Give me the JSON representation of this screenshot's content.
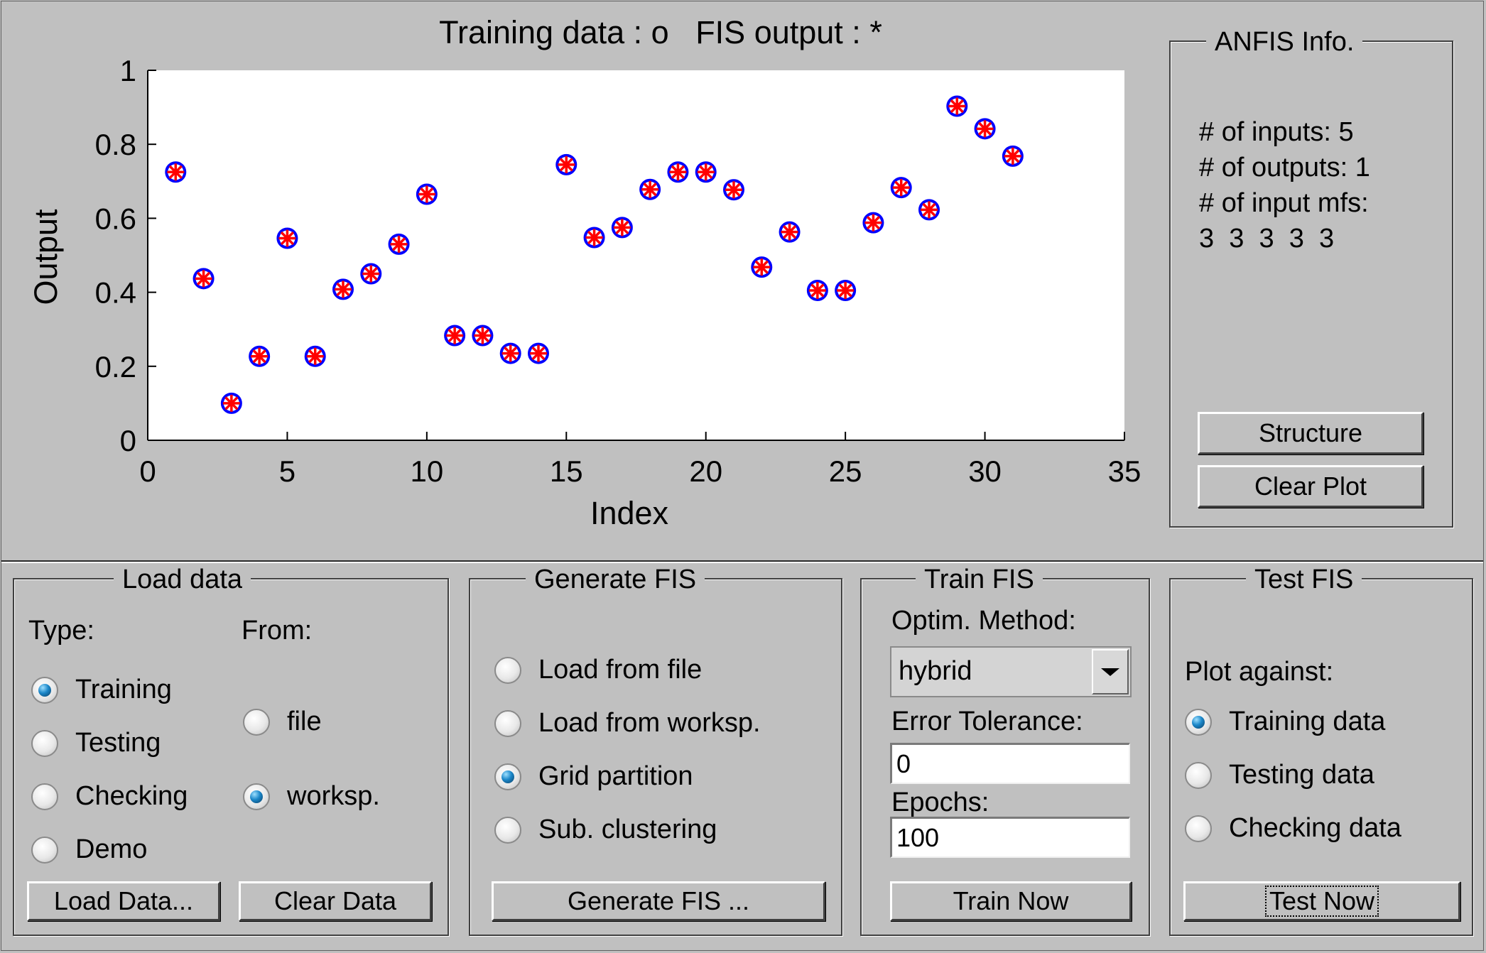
{
  "plot": {
    "title": "Training data : o   FIS output : *"
  },
  "chart_data": {
    "type": "scatter",
    "title": "Training data : o   FIS output : *",
    "xlabel": "Index",
    "ylabel": "Output",
    "xlim": [
      0,
      35
    ],
    "ylim": [
      0,
      1
    ],
    "x_ticks": [
      "0",
      "5",
      "10",
      "15",
      "20",
      "25",
      "30",
      "35"
    ],
    "y_ticks": [
      "0",
      "0.2",
      "0.4",
      "0.6",
      "0.8",
      "1"
    ],
    "grid": false,
    "series": [
      {
        "name": "Training data",
        "marker": "o",
        "color": "#0000ff",
        "x": [
          1,
          2,
          3,
          4,
          5,
          6,
          7,
          8,
          9,
          10,
          11,
          12,
          13,
          14,
          15,
          16,
          17,
          18,
          19,
          20,
          21,
          22,
          23,
          24,
          25,
          26,
          27,
          28,
          29,
          30,
          31
        ],
        "y": [
          0.725,
          0.437,
          0.1,
          0.227,
          0.546,
          0.227,
          0.408,
          0.45,
          0.53,
          0.665,
          0.283,
          0.283,
          0.235,
          0.235,
          0.745,
          0.548,
          0.575,
          0.678,
          0.725,
          0.725,
          0.677,
          0.468,
          0.563,
          0.405,
          0.405,
          0.588,
          0.683,
          0.623,
          0.903,
          0.842,
          0.768
        ]
      },
      {
        "name": "FIS output",
        "marker": "*",
        "color": "#ff0000",
        "x": [
          1,
          2,
          3,
          4,
          5,
          6,
          7,
          8,
          9,
          10,
          11,
          12,
          13,
          14,
          15,
          16,
          17,
          18,
          19,
          20,
          21,
          22,
          23,
          24,
          25,
          26,
          27,
          28,
          29,
          30,
          31
        ],
        "y": [
          0.725,
          0.437,
          0.1,
          0.227,
          0.546,
          0.227,
          0.408,
          0.45,
          0.53,
          0.665,
          0.283,
          0.283,
          0.235,
          0.235,
          0.745,
          0.548,
          0.575,
          0.678,
          0.725,
          0.725,
          0.677,
          0.468,
          0.563,
          0.405,
          0.405,
          0.588,
          0.683,
          0.623,
          0.903,
          0.842,
          0.768
        ]
      }
    ]
  },
  "anfis_info": {
    "title": "ANFIS Info.",
    "inputs": "# of inputs: 5",
    "outputs": "# of outputs: 1",
    "mfs_label": "# of input mfs:",
    "mfs_values": "3  3  3  3  3",
    "structure_button": "Structure",
    "clear_plot_button": "Clear Plot"
  },
  "load_data": {
    "title": "Load data",
    "type_label": "Type:",
    "from_label": "From:",
    "types": [
      {
        "label": "Training",
        "selected": true
      },
      {
        "label": "Testing",
        "selected": false
      },
      {
        "label": "Checking",
        "selected": false
      },
      {
        "label": "Demo",
        "selected": false
      }
    ],
    "sources": [
      {
        "label": "file",
        "selected": false
      },
      {
        "label": "worksp.",
        "selected": true
      }
    ],
    "load_button": "Load Data...",
    "clear_button": "Clear Data"
  },
  "generate_fis": {
    "title": "Generate FIS",
    "options": [
      {
        "label": "Load from file",
        "selected": false
      },
      {
        "label": "Load from worksp.",
        "selected": false
      },
      {
        "label": "Grid partition",
        "selected": true
      },
      {
        "label": "Sub. clustering",
        "selected": false
      }
    ],
    "button": "Generate FIS ..."
  },
  "train_fis": {
    "title": "Train FIS",
    "method_label": "Optim. Method:",
    "method_value": "hybrid",
    "tolerance_label": "Error Tolerance:",
    "tolerance_value": "0",
    "epochs_label": "Epochs:",
    "epochs_value": "100",
    "button": "Train Now"
  },
  "test_fis": {
    "title": "Test FIS",
    "plot_against_label": "Plot against:",
    "options": [
      {
        "label": "Training data",
        "selected": true
      },
      {
        "label": "Testing data",
        "selected": false
      },
      {
        "label": "Checking data",
        "selected": false
      }
    ],
    "button": "Test Now"
  }
}
